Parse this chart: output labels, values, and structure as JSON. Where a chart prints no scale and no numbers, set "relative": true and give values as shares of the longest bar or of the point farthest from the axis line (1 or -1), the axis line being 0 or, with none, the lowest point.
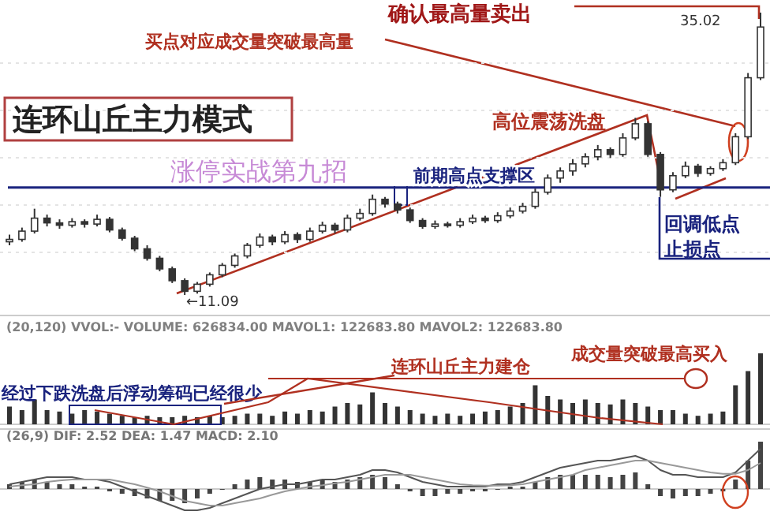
{
  "chart_data": [
    {
      "type": "candlestick",
      "title": "连环山丘主力模式",
      "subtitle": "涨停实战第九招",
      "color": "#333333",
      "categories": [
        null,
        null,
        null,
        null,
        null,
        null,
        null,
        null,
        null,
        null,
        null,
        null,
        null,
        null,
        null,
        null,
        null,
        null,
        null,
        null,
        null,
        null,
        null,
        null,
        null,
        null,
        null,
        null,
        null,
        null,
        null,
        null,
        null,
        null,
        null,
        null,
        null,
        null,
        null,
        null,
        null,
        null,
        null,
        null,
        null,
        null,
        null,
        null,
        null,
        null,
        null,
        null,
        null,
        null,
        null,
        null,
        null,
        null,
        null,
        null,
        null
      ],
      "ohlc": [
        [
          15.6,
          16.2,
          15.3,
          15.8
        ],
        [
          15.8,
          16.8,
          15.6,
          16.5
        ],
        [
          16.5,
          18.4,
          16.3,
          17.6
        ],
        [
          17.6,
          17.9,
          16.9,
          17.2
        ],
        [
          17.2,
          17.5,
          16.7,
          17.0
        ],
        [
          17.0,
          17.6,
          16.8,
          17.3
        ],
        [
          17.3,
          17.5,
          16.8,
          17.1
        ],
        [
          17.1,
          17.9,
          16.9,
          17.5
        ],
        [
          17.5,
          17.7,
          16.4,
          16.6
        ],
        [
          16.6,
          16.8,
          15.7,
          15.9
        ],
        [
          15.9,
          16.1,
          14.8,
          15.0
        ],
        [
          15.0,
          15.3,
          14.0,
          14.2
        ],
        [
          14.2,
          14.4,
          13.1,
          13.3
        ],
        [
          13.3,
          13.5,
          12.1,
          12.3
        ],
        [
          12.3,
          12.5,
          11.09,
          11.4
        ],
        [
          11.4,
          12.2,
          11.2,
          12.0
        ],
        [
          12.0,
          13.0,
          11.8,
          12.8
        ],
        [
          12.8,
          13.8,
          12.6,
          13.6
        ],
        [
          13.6,
          14.6,
          13.4,
          14.4
        ],
        [
          14.4,
          15.5,
          14.2,
          15.3
        ],
        [
          15.3,
          16.3,
          15.1,
          16.0
        ],
        [
          16.0,
          16.2,
          15.3,
          15.6
        ],
        [
          15.6,
          16.5,
          15.4,
          16.2
        ],
        [
          16.2,
          16.4,
          15.5,
          15.8
        ],
        [
          15.8,
          16.8,
          15.6,
          16.5
        ],
        [
          16.5,
          17.3,
          16.3,
          17.0
        ],
        [
          17.0,
          17.2,
          16.3,
          16.6
        ],
        [
          16.6,
          17.9,
          16.4,
          17.6
        ],
        [
          17.6,
          18.4,
          17.4,
          18.0
        ],
        [
          18.0,
          19.6,
          17.8,
          19.2
        ],
        [
          19.2,
          19.4,
          18.5,
          18.8
        ],
        [
          18.8,
          19.0,
          18.0,
          18.3
        ],
        [
          18.3,
          18.5,
          17.2,
          17.4
        ],
        [
          17.4,
          17.6,
          16.7,
          16.9
        ],
        [
          16.9,
          17.4,
          16.7,
          17.1
        ],
        [
          17.1,
          17.3,
          16.8,
          17.0
        ],
        [
          17.0,
          17.6,
          16.8,
          17.3
        ],
        [
          17.3,
          17.9,
          17.1,
          17.6
        ],
        [
          17.6,
          17.8,
          17.2,
          17.4
        ],
        [
          17.4,
          18.1,
          17.2,
          17.8
        ],
        [
          17.8,
          18.5,
          17.6,
          18.2
        ],
        [
          18.2,
          18.9,
          18.0,
          18.6
        ],
        [
          18.6,
          20.1,
          18.4,
          19.8
        ],
        [
          19.8,
          21.3,
          19.6,
          21.0
        ],
        [
          21.0,
          21.9,
          20.6,
          21.6
        ],
        [
          21.6,
          22.6,
          21.2,
          22.2
        ],
        [
          22.2,
          23.1,
          21.9,
          22.8
        ],
        [
          22.8,
          23.8,
          22.5,
          23.4
        ],
        [
          23.4,
          23.6,
          22.7,
          23.0
        ],
        [
          23.0,
          24.8,
          22.8,
          24.4
        ],
        [
          24.4,
          26.1,
          24.2,
          25.6
        ],
        [
          25.6,
          25.8,
          22.8,
          23.0
        ],
        [
          23.0,
          23.2,
          19.4,
          20.0
        ],
        [
          20.0,
          21.5,
          19.8,
          21.2
        ],
        [
          21.2,
          22.4,
          21.0,
          22.0
        ],
        [
          22.0,
          22.2,
          21.1,
          21.4
        ],
        [
          21.4,
          22.0,
          21.2,
          21.8
        ],
        [
          21.8,
          22.6,
          21.6,
          22.3
        ],
        [
          22.3,
          24.8,
          22.1,
          24.5
        ],
        [
          24.5,
          29.9,
          24.3,
          29.5
        ],
        [
          29.5,
          35.02,
          29.3,
          33.8
        ]
      ],
      "ref_lines": [
        {
          "axis": "y",
          "value": 20.2,
          "label": "前期高点支撑区",
          "color": "#1a237e"
        }
      ],
      "annotations": [
        "买点对应成交量突破最高量",
        "确认最高量卖出",
        "高位震荡洗盘",
        "回调低点止损点",
        "←11.09",
        "35.02"
      ]
    },
    {
      "type": "bar",
      "relative": true,
      "color": "#333333",
      "categories": [
        null,
        null,
        null,
        null,
        null,
        null,
        null,
        null,
        null,
        null,
        null,
        null,
        null,
        null,
        null,
        null,
        null,
        null,
        null,
        null,
        null,
        null,
        null,
        null,
        null,
        null,
        null,
        null,
        null,
        null,
        null,
        null,
        null,
        null,
        null,
        null,
        null,
        null,
        null,
        null,
        null,
        null,
        null,
        null,
        null,
        null,
        null,
        null,
        null,
        null,
        null,
        null,
        null,
        null,
        null,
        null,
        null,
        null,
        null,
        null,
        null
      ],
      "values": [
        0.25,
        0.2,
        0.35,
        0.2,
        0.18,
        0.15,
        0.2,
        0.18,
        0.15,
        0.12,
        0.1,
        0.12,
        0.1,
        0.1,
        0.12,
        0.1,
        0.12,
        0.1,
        0.12,
        0.15,
        0.15,
        0.12,
        0.18,
        0.15,
        0.2,
        0.18,
        0.25,
        0.3,
        0.28,
        0.45,
        0.3,
        0.25,
        0.2,
        0.15,
        0.12,
        0.15,
        0.12,
        0.15,
        0.18,
        0.2,
        0.25,
        0.3,
        0.55,
        0.4,
        0.35,
        0.3,
        0.35,
        0.3,
        0.28,
        0.35,
        0.3,
        0.25,
        0.2,
        0.2,
        0.15,
        0.12,
        0.15,
        0.18,
        0.55,
        0.75,
        1
      ],
      "annotations": [
        "(20,120) VVOL:-  VOLUME: 626834.00  MAVOL1: 122683.80  MAVOL2: 122683.80",
        "经过下跌洗盘后浮动筹码已经很少",
        "连环山丘主力建仓",
        "成交量突破最高买入"
      ]
    },
    {
      "type": "bar",
      "relative": true,
      "categories": [
        null,
        null,
        null,
        null,
        null,
        null,
        null,
        null,
        null,
        null,
        null,
        null,
        null,
        null,
        null,
        null,
        null,
        null,
        null,
        null,
        null,
        null,
        null,
        null,
        null,
        null,
        null,
        null,
        null,
        null,
        null,
        null,
        null,
        null,
        null,
        null,
        null,
        null,
        null,
        null,
        null,
        null,
        null,
        null,
        null,
        null,
        null,
        null,
        null,
        null,
        null,
        null,
        null,
        null,
        null,
        null,
        null,
        null,
        null,
        null,
        null
      ],
      "series": [
        {
          "type": "bar",
          "color": "#444444",
          "values": [
            0.1,
            0.15,
            0.2,
            0.15,
            0.1,
            0.1,
            0.05,
            0.05,
            -0.05,
            -0.1,
            -0.15,
            -0.2,
            -0.25,
            -0.25,
            -0.3,
            -0.2,
            -0.1,
            0,
            0.1,
            0.2,
            0.25,
            0.2,
            0.2,
            0.15,
            0.15,
            0.2,
            0.15,
            0.2,
            0.25,
            0.3,
            0.25,
            0.1,
            -0.05,
            -0.15,
            -0.15,
            -0.1,
            -0.1,
            -0.05,
            -0.05,
            0,
            0.05,
            0.05,
            0.15,
            0.25,
            0.3,
            0.3,
            0.3,
            0.3,
            0.25,
            0.3,
            0.35,
            0.1,
            -0.15,
            -0.2,
            -0.15,
            -0.15,
            -0.1,
            -0.05,
            0.2,
            0.6,
            1.0
          ]
        },
        {
          "type": "line",
          "color": "#555555",
          "values": [
            0.1,
            0.15,
            0.2,
            0.25,
            0.25,
            0.25,
            0.2,
            0.2,
            0.15,
            0.05,
            -0.05,
            -0.15,
            -0.25,
            -0.35,
            -0.45,
            -0.45,
            -0.4,
            -0.3,
            -0.2,
            -0.1,
            0,
            0.05,
            0.1,
            0.1,
            0.15,
            0.2,
            0.2,
            0.25,
            0.3,
            0.4,
            0.4,
            0.35,
            0.25,
            0.15,
            0.1,
            0.05,
            0.05,
            0.05,
            0.05,
            0.1,
            0.1,
            0.15,
            0.25,
            0.35,
            0.45,
            0.5,
            0.55,
            0.6,
            0.6,
            0.65,
            0.7,
            0.6,
            0.4,
            0.3,
            0.3,
            0.25,
            0.25,
            0.25,
            0.35,
            0.6,
            0.85
          ]
        },
        {
          "type": "line",
          "color": "#999999",
          "values": [
            0.05,
            0.08,
            0.1,
            0.15,
            0.18,
            0.2,
            0.2,
            0.2,
            0.2,
            0.15,
            0.1,
            0.03,
            -0.05,
            -0.15,
            -0.25,
            -0.3,
            -0.35,
            -0.35,
            -0.3,
            -0.25,
            -0.2,
            -0.12,
            -0.05,
            0,
            0.05,
            0.08,
            0.12,
            0.15,
            0.2,
            0.25,
            0.3,
            0.3,
            0.3,
            0.25,
            0.2,
            0.15,
            0.1,
            0.08,
            0.07,
            0.07,
            0.08,
            0.1,
            0.15,
            0.2,
            0.25,
            0.3,
            0.4,
            0.45,
            0.5,
            0.55,
            0.6,
            0.6,
            0.55,
            0.5,
            0.45,
            0.4,
            0.35,
            0.32,
            0.32,
            0.4,
            0.55
          ]
        }
      ],
      "annotations": [
        "(26,9) DIF: 2.52  DEA: 1.47  MACD: 2.10"
      ]
    }
  ]
}
